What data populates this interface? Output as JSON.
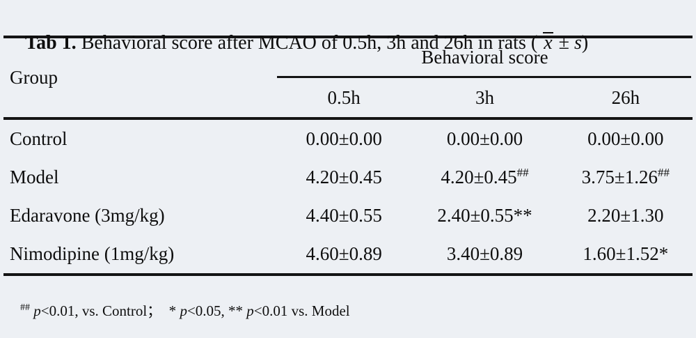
{
  "colors": {
    "background": "#edf0f4",
    "rule": "#141414",
    "text": "#0e0e0e"
  },
  "title": {
    "bold": "Tab 1.",
    "main": " Behavioral score after MCAO of 0.5h, 3h and 26h in rats ( ",
    "xbar": "x",
    "pm": " ± ",
    "s": "s",
    "close": ")"
  },
  "table": {
    "group_header": "Group",
    "spanner": "Behavioral score",
    "columns": [
      "0.5h",
      "3h",
      "26h"
    ],
    "rows": [
      {
        "group": "Control",
        "values": [
          {
            "text": "0.00±0.00",
            "sup": ""
          },
          {
            "text": "0.00±0.00",
            "sup": ""
          },
          {
            "text": "0.00±0.00",
            "sup": ""
          }
        ]
      },
      {
        "group": "Model",
        "values": [
          {
            "text": "4.20±0.45",
            "sup": ""
          },
          {
            "text": "4.20±0.45",
            "sup": "##"
          },
          {
            "text": "3.75±1.26",
            "sup": "##"
          }
        ]
      },
      {
        "group": "Edaravone (3mg/kg)",
        "values": [
          {
            "text": "4.40±0.55",
            "sup": ""
          },
          {
            "text": "2.40±0.55**",
            "sup": ""
          },
          {
            "text": "2.20±1.30",
            "sup": ""
          }
        ]
      },
      {
        "group": "Nimodipine (1mg/kg)",
        "values": [
          {
            "text": "4.60±0.89",
            "sup": ""
          },
          {
            "text": "3.40±0.89",
            "sup": ""
          },
          {
            "text": "1.60±1.52*",
            "sup": ""
          }
        ]
      }
    ]
  },
  "footnote": {
    "sup": "##",
    "space": " ",
    "p": "p",
    "seg1": "<0.01, vs. Control；  * ",
    "seg2": "<0.05, ** ",
    "seg3": "<0.01 vs. Model"
  }
}
